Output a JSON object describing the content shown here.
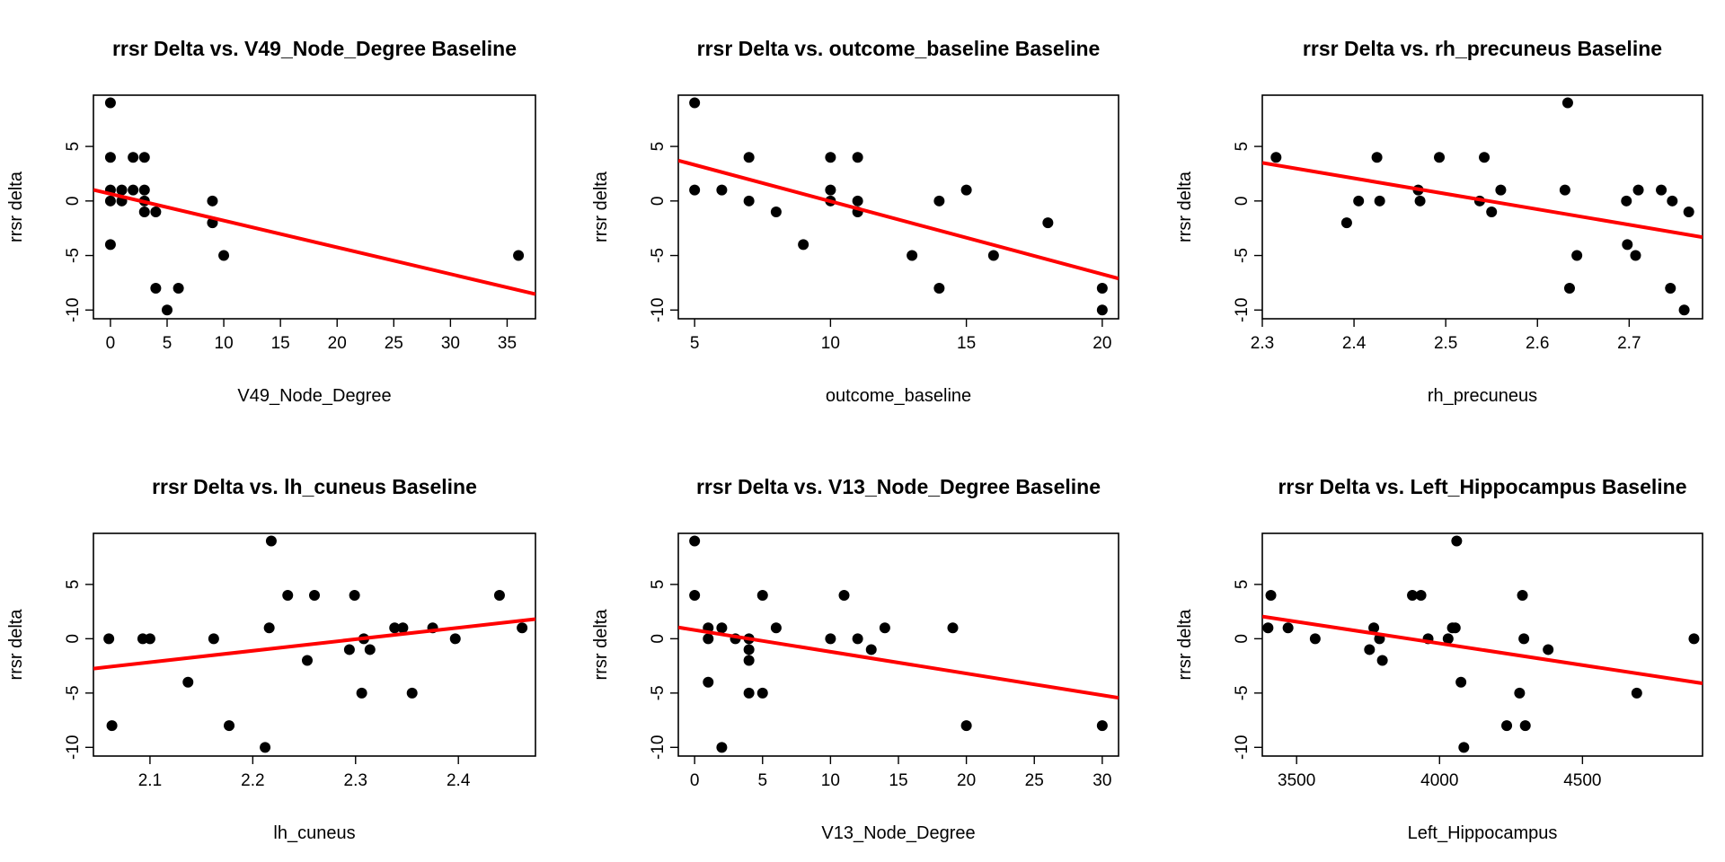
{
  "colors": {
    "point": "#000000",
    "fit_line": "#ff0000",
    "background": "#ffffff"
  },
  "chart_data": [
    {
      "type": "scatter",
      "title": "rrsr Delta vs. V49_Node_Degree Baseline",
      "xlabel": "V49_Node_Degree",
      "ylabel": "rrsr delta",
      "xlim": [
        -1.5,
        37.5
      ],
      "ylim": [
        -10.8,
        9.7
      ],
      "xticks": [
        0,
        5,
        10,
        15,
        20,
        25,
        30,
        35
      ],
      "yticks": [
        -10,
        -5,
        0,
        5
      ],
      "grid": false,
      "points": [
        [
          0,
          9
        ],
        [
          0,
          4
        ],
        [
          0,
          1
        ],
        [
          0,
          0
        ],
        [
          0,
          -4
        ],
        [
          1,
          1
        ],
        [
          1,
          0
        ],
        [
          2,
          4
        ],
        [
          2,
          1
        ],
        [
          3,
          4
        ],
        [
          3,
          1
        ],
        [
          3,
          0
        ],
        [
          3,
          -1
        ],
        [
          4,
          -1
        ],
        [
          4,
          -8
        ],
        [
          5,
          -10
        ],
        [
          6,
          -8
        ],
        [
          9,
          0
        ],
        [
          9,
          -2
        ],
        [
          10,
          -5
        ],
        [
          36,
          -5
        ]
      ],
      "fit_line": {
        "intercept": 0.65,
        "slope": -0.245
      }
    },
    {
      "type": "scatter",
      "title": "rrsr Delta vs. outcome_baseline Baseline",
      "xlabel": "outcome_baseline",
      "ylabel": "rrsr delta",
      "xlim": [
        4.4,
        20.6
      ],
      "ylim": [
        -10.8,
        9.7
      ],
      "xticks": [
        5,
        10,
        15,
        20
      ],
      "yticks": [
        -10,
        -5,
        0,
        5
      ],
      "grid": false,
      "points": [
        [
          5,
          9
        ],
        [
          5,
          1
        ],
        [
          6,
          1
        ],
        [
          7,
          4
        ],
        [
          7,
          0
        ],
        [
          8,
          -1
        ],
        [
          9,
          -4
        ],
        [
          10,
          4
        ],
        [
          10,
          1
        ],
        [
          10,
          0
        ],
        [
          11,
          4
        ],
        [
          11,
          0
        ],
        [
          11,
          -1
        ],
        [
          13,
          -5
        ],
        [
          14,
          0
        ],
        [
          14,
          -8
        ],
        [
          15,
          1
        ],
        [
          16,
          -5
        ],
        [
          18,
          -2
        ],
        [
          20,
          -8
        ],
        [
          20,
          -10
        ]
      ],
      "fit_line": {
        "intercept": 6.65,
        "slope": -0.668
      }
    },
    {
      "type": "scatter",
      "title": "rrsr Delta vs. rh_precuneus Baseline",
      "xlabel": "rh_precuneus",
      "ylabel": "rrsr delta",
      "xlim": [
        2.3,
        2.78
      ],
      "ylim": [
        -10.8,
        9.7
      ],
      "xticks": [
        2.3,
        2.4,
        2.5,
        2.6,
        2.7
      ],
      "yticks": [
        -10,
        -5,
        0,
        5
      ],
      "grid": false,
      "points": [
        [
          2.315,
          4
        ],
        [
          2.392,
          -2
        ],
        [
          2.405,
          0
        ],
        [
          2.425,
          4
        ],
        [
          2.428,
          0
        ],
        [
          2.47,
          1
        ],
        [
          2.472,
          0
        ],
        [
          2.493,
          4
        ],
        [
          2.537,
          0
        ],
        [
          2.542,
          4
        ],
        [
          2.55,
          -1
        ],
        [
          2.56,
          1
        ],
        [
          2.63,
          1
        ],
        [
          2.633,
          9
        ],
        [
          2.635,
          -8
        ],
        [
          2.643,
          -5
        ],
        [
          2.697,
          0
        ],
        [
          2.698,
          -4
        ],
        [
          2.707,
          -5
        ],
        [
          2.71,
          1
        ],
        [
          2.735,
          1
        ],
        [
          2.745,
          -8
        ],
        [
          2.747,
          0
        ],
        [
          2.76,
          -10
        ],
        [
          2.765,
          -1
        ]
      ],
      "fit_line": {
        "intercept": 3.5,
        "slope": -14.2,
        "x0": 2.3
      }
    },
    {
      "type": "scatter",
      "title": "rrsr Delta vs. lh_cuneus Baseline",
      "xlabel": "lh_cuneus",
      "ylabel": "rrsr delta",
      "xlim": [
        2.045,
        2.475
      ],
      "ylim": [
        -10.8,
        9.7
      ],
      "xticks": [
        2.1,
        2.2,
        2.3,
        2.4
      ],
      "yticks": [
        -10,
        -5,
        0,
        5
      ],
      "grid": false,
      "points": [
        [
          2.06,
          0
        ],
        [
          2.063,
          -8
        ],
        [
          2.093,
          0
        ],
        [
          2.1,
          0
        ],
        [
          2.137,
          -4
        ],
        [
          2.162,
          0
        ],
        [
          2.177,
          -8
        ],
        [
          2.212,
          -10
        ],
        [
          2.216,
          1
        ],
        [
          2.218,
          9
        ],
        [
          2.234,
          4
        ],
        [
          2.253,
          -2
        ],
        [
          2.26,
          4
        ],
        [
          2.294,
          -1
        ],
        [
          2.299,
          4
        ],
        [
          2.306,
          -5
        ],
        [
          2.308,
          0
        ],
        [
          2.314,
          -1
        ],
        [
          2.338,
          1
        ],
        [
          2.346,
          1
        ],
        [
          2.355,
          -5
        ],
        [
          2.375,
          1
        ],
        [
          2.397,
          0
        ],
        [
          2.44,
          4
        ],
        [
          2.462,
          1
        ]
      ],
      "fit_line": {
        "intercept": -2.75,
        "slope": 10.6,
        "x0": 2.045
      }
    },
    {
      "type": "scatter",
      "title": "rrsr Delta vs. V13_Node_Degree Baseline",
      "xlabel": "V13_Node_Degree",
      "ylabel": "rrsr delta",
      "xlim": [
        -1.2,
        31.2
      ],
      "ylim": [
        -10.8,
        9.7
      ],
      "xticks": [
        0,
        5,
        10,
        15,
        20,
        25,
        30
      ],
      "yticks": [
        -10,
        -5,
        0,
        5
      ],
      "grid": false,
      "points": [
        [
          0,
          9
        ],
        [
          0,
          4
        ],
        [
          1,
          1
        ],
        [
          1,
          0
        ],
        [
          1,
          -4
        ],
        [
          2,
          1
        ],
        [
          2,
          -10
        ],
        [
          3,
          0
        ],
        [
          4,
          0
        ],
        [
          4,
          -1
        ],
        [
          4,
          -2
        ],
        [
          4,
          -5
        ],
        [
          5,
          4
        ],
        [
          5,
          -5
        ],
        [
          6,
          1
        ],
        [
          10,
          0
        ],
        [
          11,
          4
        ],
        [
          12,
          0
        ],
        [
          13,
          -1
        ],
        [
          14,
          1
        ],
        [
          19,
          1
        ],
        [
          20,
          -8
        ],
        [
          30,
          -8
        ]
      ],
      "fit_line": {
        "intercept": 0.8,
        "slope": -0.2
      }
    },
    {
      "type": "scatter",
      "title": "rrsr Delta vs. Left_Hippocampus Baseline",
      "xlabel": "Left_Hippocampus",
      "ylabel": "rrsr delta",
      "xlim": [
        3380,
        4920
      ],
      "ylim": [
        -10.8,
        9.7
      ],
      "xticks": [
        3500,
        4000,
        4500
      ],
      "yticks": [
        -10,
        -5,
        0,
        5
      ],
      "grid": false,
      "points": [
        [
          3400,
          1
        ],
        [
          3410,
          4
        ],
        [
          3470,
          1
        ],
        [
          3565,
          0
        ],
        [
          3755,
          -1
        ],
        [
          3770,
          1
        ],
        [
          3790,
          0
        ],
        [
          3800,
          -2
        ],
        [
          3905,
          4
        ],
        [
          3935,
          4
        ],
        [
          3960,
          0
        ],
        [
          4030,
          0
        ],
        [
          4045,
          1
        ],
        [
          4055,
          1
        ],
        [
          4060,
          9
        ],
        [
          4075,
          -4
        ],
        [
          4085,
          -10
        ],
        [
          4235,
          -8
        ],
        [
          4280,
          -5
        ],
        [
          4290,
          4
        ],
        [
          4295,
          0
        ],
        [
          4300,
          -8
        ],
        [
          4380,
          -1
        ],
        [
          4690,
          -5
        ],
        [
          4890,
          0
        ]
      ],
      "fit_line": {
        "intercept": 2.05,
        "slope": -0.004,
        "x0": 3380
      }
    }
  ]
}
